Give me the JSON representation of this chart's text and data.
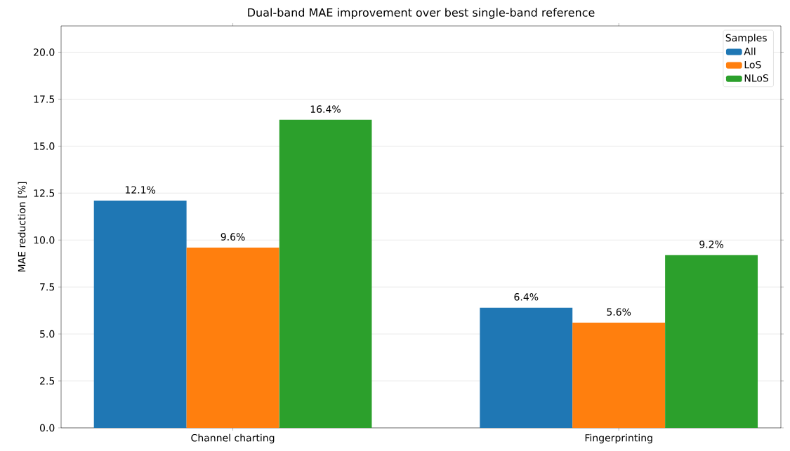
{
  "chart_data": {
    "type": "bar",
    "title": "Dual-band MAE improvement over best single-band reference",
    "ylabel": "MAE reduction [%]",
    "legend_title": "Samples",
    "categories": [
      "Channel charting",
      "Fingerprinting"
    ],
    "series": [
      {
        "name": "All",
        "color": "#1f77b4",
        "values": [
          12.1,
          6.4
        ],
        "value_labels": [
          "12.1%",
          "6.4%"
        ]
      },
      {
        "name": "LoS",
        "color": "#ff7f0e",
        "values": [
          9.6,
          5.6
        ],
        "value_labels": [
          "9.6%",
          "5.6%"
        ]
      },
      {
        "name": "NLoS",
        "color": "#2ca02c",
        "values": [
          16.4,
          9.2
        ],
        "value_labels": [
          "16.4%",
          "9.2%"
        ]
      }
    ],
    "ylim": [
      0,
      21.4
    ],
    "yticks": [
      {
        "value": 0,
        "label": "0.0"
      },
      {
        "value": 2.5,
        "label": "2.5"
      },
      {
        "value": 5,
        "label": "5.0"
      },
      {
        "value": 7.5,
        "label": "7.5"
      },
      {
        "value": 10,
        "label": "10.0"
      },
      {
        "value": 12.5,
        "label": "12.5"
      },
      {
        "value": 15,
        "label": "15.0"
      },
      {
        "value": 17.5,
        "label": "17.5"
      },
      {
        "value": 20,
        "label": "20.0"
      }
    ],
    "grid": "y",
    "legend": "top right"
  }
}
